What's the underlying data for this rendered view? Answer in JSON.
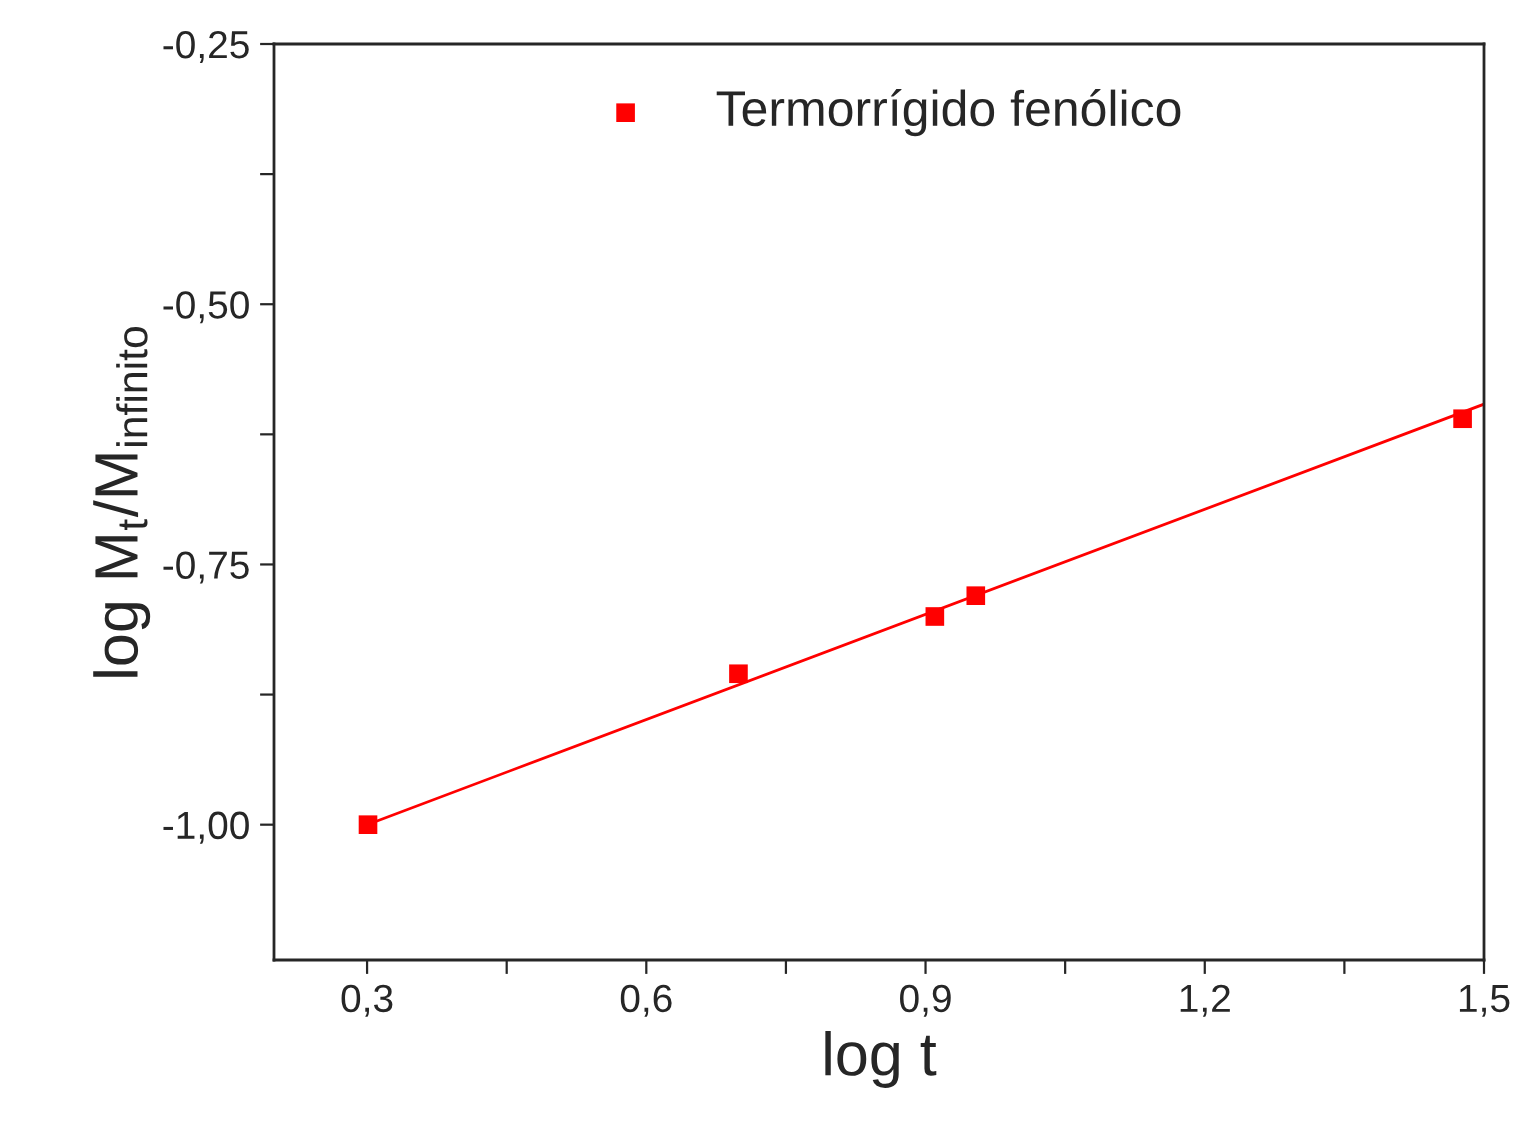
{
  "chart_data": {
    "type": "scatter",
    "xlabel": "log t",
    "ylabel": "log M$_{t}$/M$_{infinito}$",
    "xlim": [
      0.2,
      1.5
    ],
    "ylim": [
      -1.13,
      -0.25
    ],
    "xticks": [
      {
        "value": 0.3,
        "label": "0,3"
      },
      {
        "value": 0.45,
        "label": null
      },
      {
        "value": 0.6,
        "label": "0,6"
      },
      {
        "value": 0.75,
        "label": null
      },
      {
        "value": 0.9,
        "label": "0,9"
      },
      {
        "value": 1.05,
        "label": null
      },
      {
        "value": 1.2,
        "label": "1,2"
      },
      {
        "value": 1.35,
        "label": null
      },
      {
        "value": 1.5,
        "label": "1,5"
      }
    ],
    "yticks": [
      {
        "value": -1.0,
        "label": "-1,00"
      },
      {
        "value": -0.875,
        "label": null
      },
      {
        "value": -0.75,
        "label": "-0,75"
      },
      {
        "value": -0.625,
        "label": null
      },
      {
        "value": -0.5,
        "label": "-0,50"
      },
      {
        "value": -0.375,
        "label": null
      },
      {
        "value": -0.25,
        "label": "-0,25"
      }
    ],
    "legend": "top",
    "grid": false,
    "series": [
      {
        "name": "Termorrígido fenólico",
        "marker": "square",
        "color": "#ff0000",
        "x": [
          0.301,
          0.699,
          0.91,
          0.954,
          1.477
        ],
        "values": [
          -1.0,
          -0.855,
          -0.8,
          -0.78,
          -0.61
        ]
      },
      {
        "type": "line",
        "color": "#ff0000",
        "x": [
          0.3,
          1.5
        ],
        "values": [
          -1.0,
          -0.596
        ]
      }
    ]
  }
}
